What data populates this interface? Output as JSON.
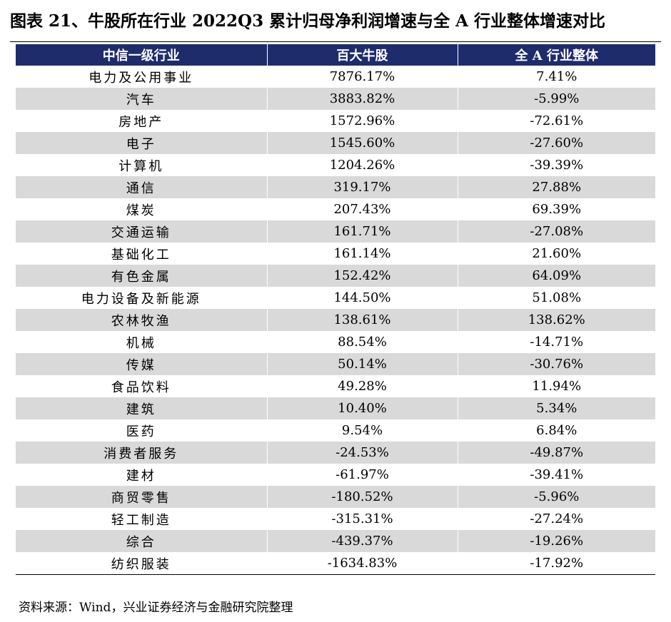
{
  "title": "图表 21、牛股所在行业 2022Q3 累计归母净利润增速与全 A 行业整体增速对比",
  "table": {
    "headers": [
      "中信一级行业",
      "百大牛股",
      "全 A 行业整体"
    ],
    "rows": [
      [
        "电力及公用事业",
        "7876.17%",
        "7.41%"
      ],
      [
        "汽车",
        "3883.82%",
        "-5.99%"
      ],
      [
        "房地产",
        "1572.96%",
        "-72.61%"
      ],
      [
        "电子",
        "1545.60%",
        "-27.60%"
      ],
      [
        "计算机",
        "1204.26%",
        "-39.39%"
      ],
      [
        "通信",
        "319.17%",
        "27.88%"
      ],
      [
        "煤炭",
        "207.43%",
        "69.39%"
      ],
      [
        "交通运输",
        "161.71%",
        "-27.08%"
      ],
      [
        "基础化工",
        "161.14%",
        "21.60%"
      ],
      [
        "有色金属",
        "152.42%",
        "64.09%"
      ],
      [
        "电力设备及新能源",
        "144.50%",
        "51.08%"
      ],
      [
        "农林牧渔",
        "138.61%",
        "138.62%"
      ],
      [
        "机械",
        "88.54%",
        "-14.71%"
      ],
      [
        "传媒",
        "50.14%",
        "-30.76%"
      ],
      [
        "食品饮料",
        "49.28%",
        "11.94%"
      ],
      [
        "建筑",
        "10.40%",
        "5.34%"
      ],
      [
        "医药",
        "9.54%",
        "6.84%"
      ],
      [
        "消费者服务",
        "-24.53%",
        "-49.87%"
      ],
      [
        "建材",
        "-61.97%",
        "-39.41%"
      ],
      [
        "商贸零售",
        "-180.52%",
        "-5.96%"
      ],
      [
        "轻工制造",
        "-315.31%",
        "-27.24%"
      ],
      [
        "综合",
        "-439.37%",
        "-19.26%"
      ],
      [
        "纺织服装",
        "-1634.83%",
        "-17.92%"
      ]
    ]
  },
  "source": "资料来源：Wind，兴业证券经济与金融研究院整理",
  "colors": {
    "header_bg": "#1f2c6b",
    "stripe_bg": "#d9d9d9"
  }
}
